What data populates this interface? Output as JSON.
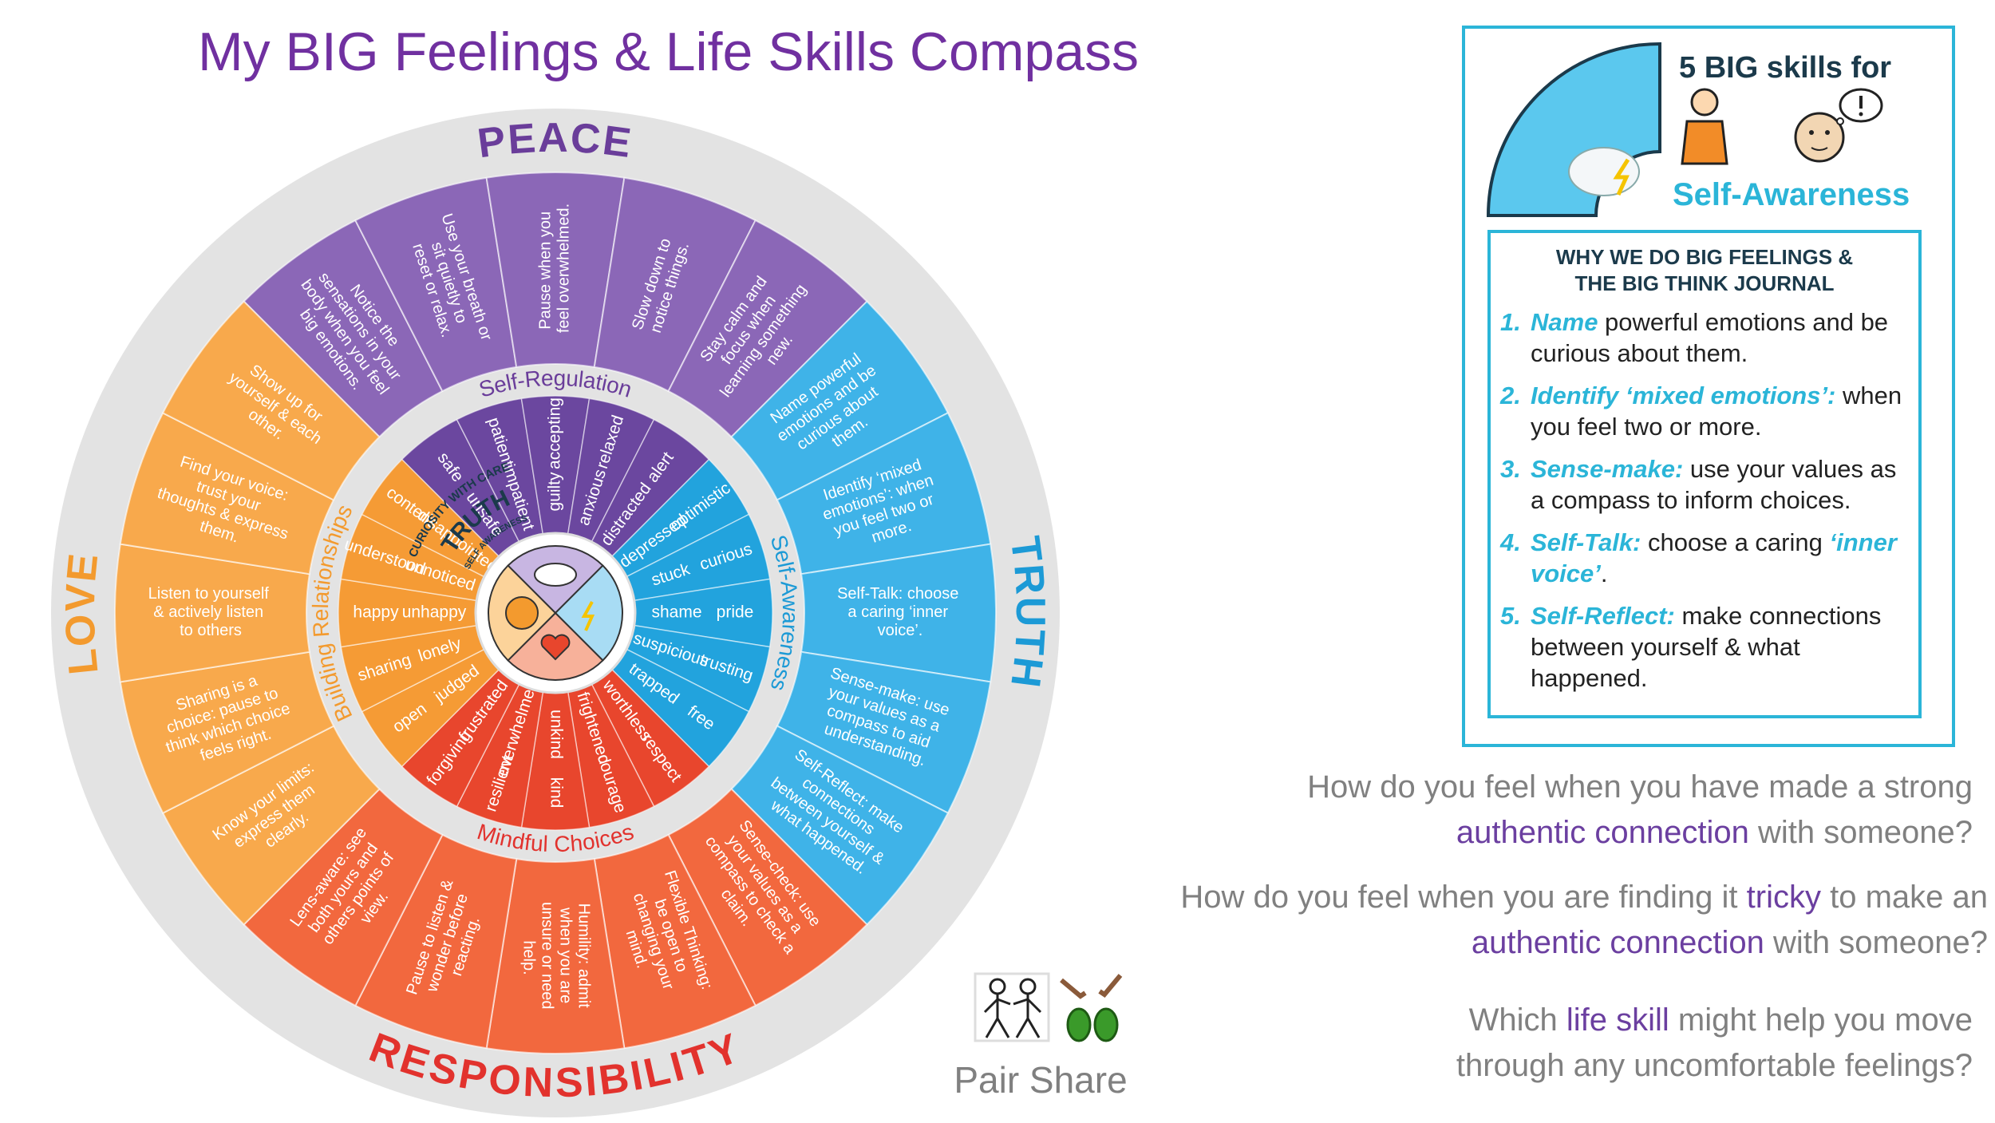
{
  "title": "My BIG Feelings & Life Skills Compass",
  "compass": {
    "quadrants": [
      {
        "value": "PEACE",
        "skill": "Self-Regulation",
        "actions": [
          "Notice the sensations in your body when you feel big emotions.",
          "Use your breath or sit quietly to reset or relax.",
          "Pause when you feel overwhelmed.",
          "Slow down to notice things.",
          "Stay calm and focus when learning something new."
        ],
        "feelings": [
          [
            "safe",
            "unsafe"
          ],
          [
            "patient",
            "impatient"
          ],
          [
            "accepting",
            "guilty"
          ],
          [
            "relaxed",
            "anxious"
          ],
          [
            "alert",
            "distracted"
          ]
        ]
      },
      {
        "value": "TRUTH",
        "skill": "Self-Awareness",
        "actions": [
          "Name powerful emotions and be curious about them.",
          "Identify ‘mixed emotions’: when you feel two or more.",
          "Self-Talk: choose a caring ‘inner voice’.",
          "Sense-make: use your values as a compass to aid understanding.",
          "Self-Reflect: make connections between yourself & what happened."
        ],
        "feelings": [
          [
            "optimistic",
            "depressed"
          ],
          [
            "curious",
            "stuck"
          ],
          [
            "pride",
            "shame"
          ],
          [
            "trusting",
            "suspicious"
          ],
          [
            "free",
            "trapped"
          ]
        ]
      },
      {
        "value": "RESPONSIBILITY",
        "skill": "Mindful Choices",
        "actions": [
          "Sense-check: use your values as a compass to check a claim.",
          "Flexible Thinking: be open to changing your mind.",
          "Humility: admit when you are unsure or need help.",
          "Pause to listen & wonder before reacting.",
          "Lens-aware: see both yours and others points of view."
        ],
        "feelings": [
          [
            "respect",
            "worthless"
          ],
          [
            "courage",
            "frightened"
          ],
          [
            "kind",
            "unkind"
          ],
          [
            "resilient",
            "overwhelmed"
          ],
          [
            "forgiving",
            "frustrated"
          ]
        ]
      },
      {
        "value": "LOVE",
        "skill": "Building Relationships",
        "actions": [
          "Know your limits: express them clearly.",
          "Sharing is a choice: pause to think which choice feels right.",
          "Listen to yourself & actively listen to others",
          "Find your voice: trust your thoughts & express them.",
          "Show up for yourself & each other."
        ],
        "feelings": [
          [
            "open",
            "judged"
          ],
          [
            "sharing",
            "lonely"
          ],
          [
            "happy",
            "unhappy"
          ],
          [
            "understood",
            "unnoticed"
          ],
          [
            "content",
            "disappointed"
          ]
        ]
      }
    ]
  },
  "card": {
    "badge": {
      "arc": "CURIOSITY WITH CARE",
      "value": "TRUTH",
      "skill": "SELF AWARENESS"
    },
    "heading": "5 BIG skills for",
    "subheading": "Self-Awareness",
    "journal": {
      "heading": [
        "WHY WE DO BIG FEELINGS &",
        "THE BIG THINK JOURNAL"
      ],
      "items": [
        {
          "number": "1.",
          "parts": [
            {
              "em": "Name"
            },
            {
              "text": " powerful emotions and be curious about them."
            }
          ]
        },
        {
          "number": "2.",
          "parts": [
            {
              "em": "Identify ‘mixed emotions’:"
            },
            {
              "text": " when you feel two or more."
            }
          ]
        },
        {
          "number": "3.",
          "parts": [
            {
              "em": "Sense-make:"
            },
            {
              "text": " use your values as a compass to inform choices."
            }
          ]
        },
        {
          "number": "4.",
          "parts": [
            {
              "em": "Self-Talk:"
            },
            {
              "text": " choose a caring "
            },
            {
              "em": "‘inner voice’"
            },
            {
              "text": "."
            }
          ]
        },
        {
          "number": "5.",
          "parts": [
            {
              "em": "Self-Reflect:"
            },
            {
              "text": " make connections between yourself & what happened."
            }
          ]
        }
      ]
    }
  },
  "questions": [
    [
      {
        "text": "How do you feel when you have made a strong "
      },
      {
        "em": "authentic connection"
      },
      {
        "text": " with someone?"
      }
    ],
    [
      {
        "text": "How do you feel when you are finding it "
      },
      {
        "em": "tricky"
      },
      {
        "text": " to make an "
      },
      {
        "em": "authentic connection"
      },
      {
        "text": " with someone?"
      }
    ],
    [
      {
        "text": "Which "
      },
      {
        "em": "life skill"
      },
      {
        "text": " might help you move through any uncomfortable feelings?"
      }
    ]
  ],
  "pair_share": "Pair Share"
}
